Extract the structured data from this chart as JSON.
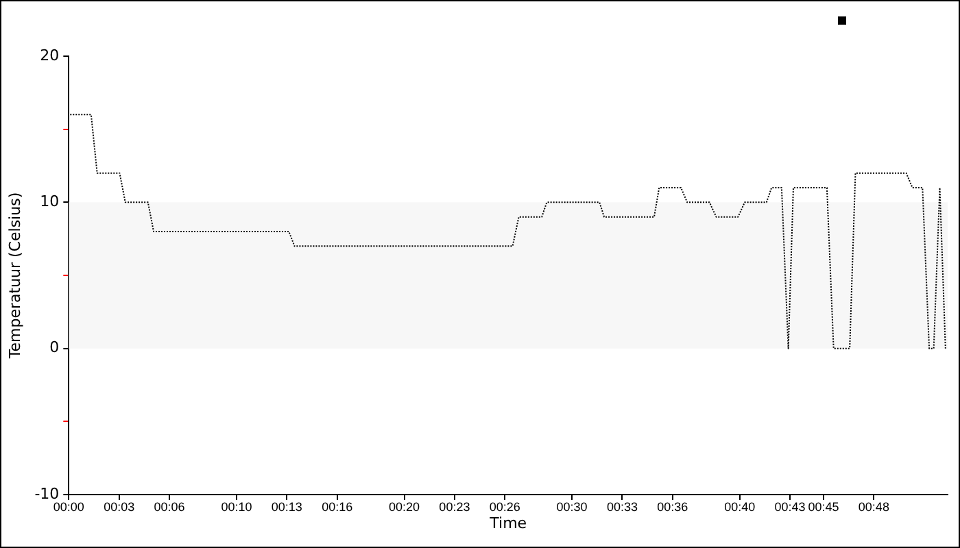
{
  "chart_data": {
    "type": "line",
    "xlabel": "Time",
    "ylabel": "Temperatuur (Celsius)",
    "xlim": [
      0,
      52.4
    ],
    "ylim": [
      -10,
      20
    ],
    "xticks": [
      {
        "value": 0,
        "label": "00:00"
      },
      {
        "value": 3,
        "label": "00:03"
      },
      {
        "value": 6,
        "label": "00:06"
      },
      {
        "value": 10,
        "label": "00:10"
      },
      {
        "value": 13,
        "label": "00:13"
      },
      {
        "value": 16,
        "label": "00:16"
      },
      {
        "value": 20,
        "label": "00:20"
      },
      {
        "value": 23,
        "label": "00:23"
      },
      {
        "value": 26,
        "label": "00:26"
      },
      {
        "value": 30,
        "label": "00:30"
      },
      {
        "value": 33,
        "label": "00:33"
      },
      {
        "value": 36,
        "label": "00:36"
      },
      {
        "value": 40,
        "label": "00:40"
      },
      {
        "value": 43,
        "label": "00:43"
      },
      {
        "value": 45,
        "label": "00:45"
      },
      {
        "value": 48,
        "label": "00:48"
      }
    ],
    "yticks": [
      -10,
      {
        "value": -5,
        "label": null
      },
      0,
      {
        "value": 5,
        "label": null
      },
      10,
      {
        "value": 15,
        "label": null
      },
      20
    ],
    "bands": [
      {
        "axis": "y",
        "from": 0,
        "to": 10,
        "color": "#f7f7f7"
      }
    ],
    "line_style": "dotted",
    "marker": "none",
    "grid": false,
    "legend": false,
    "x": [
      0.08,
      1.33,
      1.69,
      3.03,
      3.37,
      4.72,
      5.06,
      13.12,
      13.46,
      26.46,
      26.83,
      28.2,
      28.5,
      31.64,
      31.92,
      34.9,
      35.2,
      36.5,
      36.87,
      38.2,
      38.6,
      39.9,
      40.3,
      41.6,
      41.9,
      42.5,
      42.9,
      43.2,
      45.2,
      45.6,
      46.56,
      46.9,
      49.93,
      50.3,
      50.9,
      51.3,
      51.57,
      51.93,
      52.27
    ],
    "series": [
      {
        "color": "#000000",
        "values": [
          16,
          16,
          12,
          12,
          10,
          10,
          8,
          8,
          7,
          7,
          9,
          9,
          10,
          10,
          9,
          9,
          11,
          11,
          10,
          10,
          9,
          9,
          10,
          10,
          11,
          11,
          0,
          11,
          11,
          0,
          0,
          12,
          12,
          11,
          11,
          0,
          0,
          11,
          0
        ]
      }
    ]
  }
}
